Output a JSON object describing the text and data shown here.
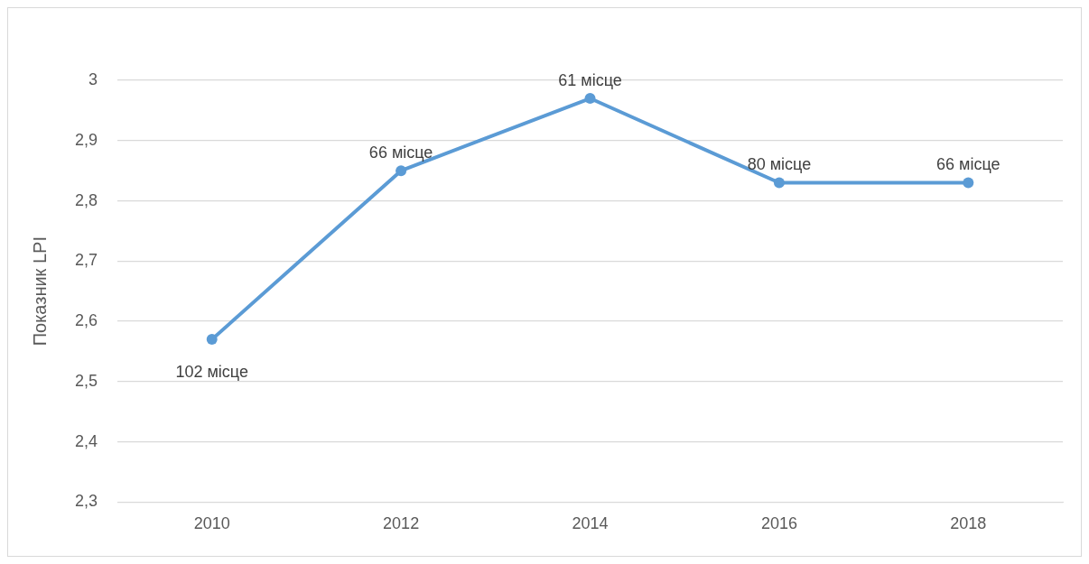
{
  "chart_data": {
    "type": "line",
    "ylabel": "Показник LPI",
    "categories": [
      "2010",
      "2012",
      "2014",
      "2016",
      "2018"
    ],
    "series": [
      {
        "color": "#5b9bd5",
        "values": [
          2.57,
          2.85,
          2.97,
          2.83,
          2.83
        ]
      }
    ],
    "ylim": [
      2.3,
      3
    ],
    "yticks": [
      {
        "value": 2.3,
        "label": "2,3"
      },
      {
        "value": 2.4,
        "label": "2,4"
      },
      {
        "value": 2.5,
        "label": "2,5"
      },
      {
        "value": 2.6,
        "label": "2,6"
      },
      {
        "value": 2.7,
        "label": "2,7"
      },
      {
        "value": 2.8,
        "label": "2,8"
      },
      {
        "value": 2.9,
        "label": "2,9"
      },
      {
        "value": 3,
        "label": "3"
      }
    ],
    "grid": "y",
    "legend": false,
    "marker": "circle",
    "line_style": "solid",
    "annotations": [
      {
        "text": "102 місце",
        "x": "2010",
        "y": 2.57
      },
      {
        "text": "66 місце",
        "x": "2012",
        "y": 2.85
      },
      {
        "text": "61 місце",
        "x": "2014",
        "y": 2.97
      },
      {
        "text": "80 місце",
        "x": "2016",
        "y": 2.83
      },
      {
        "text": "66 місце",
        "x": "2018",
        "y": 2.83
      }
    ]
  }
}
